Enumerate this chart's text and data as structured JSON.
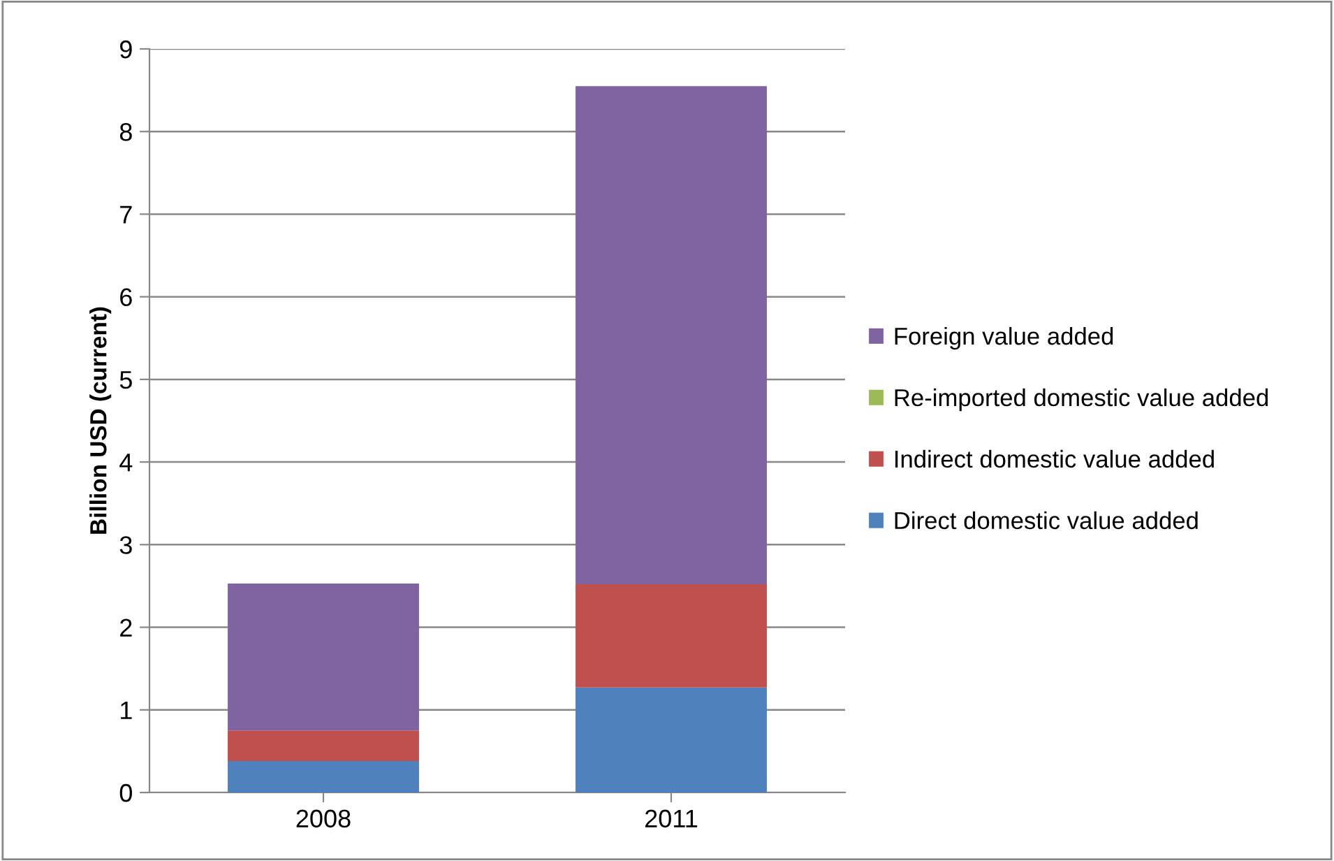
{
  "chart_data": {
    "type": "bar",
    "stacked": true,
    "ylabel": "Billion USD (current)",
    "categories": [
      "2008",
      "2011"
    ],
    "series": [
      {
        "name": "Direct domestic value added",
        "color": "#4f81bd",
        "values": [
          0.38,
          1.27
        ]
      },
      {
        "name": "Indirect domestic value added",
        "color": "#c0504d",
        "values": [
          0.37,
          1.25
        ]
      },
      {
        "name": "Re-imported domestic value added",
        "color": "#9bbb59",
        "values": [
          0,
          0
        ]
      },
      {
        "name": "Foreign value added",
        "color": "#8064a2",
        "values": [
          1.78,
          6.03
        ]
      }
    ],
    "ylim": [
      0,
      9
    ],
    "yticks": [
      0,
      1,
      2,
      3,
      4,
      5,
      6,
      7,
      8,
      9
    ],
    "grid": "y",
    "legend": "right"
  }
}
